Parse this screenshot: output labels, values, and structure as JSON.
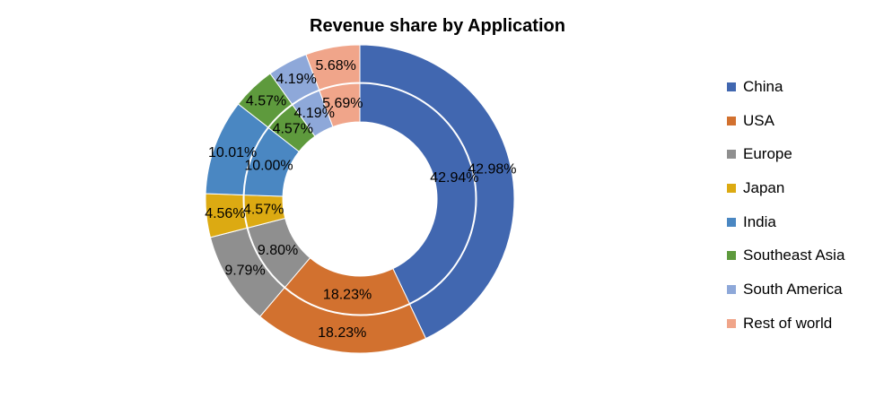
{
  "chart_data": {
    "type": "pie",
    "subtype": "double-doughnut",
    "title": "Revenue share by Application",
    "categories": [
      "China",
      "USA",
      "Europe",
      "Japan",
      "India",
      "Southeast Asia",
      "South America",
      "Rest of world"
    ],
    "colors": [
      "#4167B0",
      "#D2712F",
      "#8F8F8F",
      "#DCAA12",
      "#4A87C2",
      "#5E9A3D",
      "#8EA8D9",
      "#F0A58A"
    ],
    "series": [
      {
        "ring": "outer",
        "values": [
          42.98,
          18.23,
          9.79,
          4.56,
          10.01,
          4.57,
          4.19,
          5.68
        ],
        "labels": [
          "42.98%",
          "18.23%",
          "9.79%",
          "4.56%",
          "10.01%",
          "4.57%",
          "4.19%",
          "5.68%"
        ]
      },
      {
        "ring": "inner",
        "values": [
          42.94,
          18.23,
          9.8,
          4.57,
          10.0,
          4.57,
          4.19,
          5.69
        ],
        "labels": [
          "42.94%",
          "18.23%",
          "9.80%",
          "4.57%",
          "10.00%",
          "4.57%",
          "4.19%",
          "5.69%"
        ]
      }
    ],
    "legend_position": "right"
  }
}
